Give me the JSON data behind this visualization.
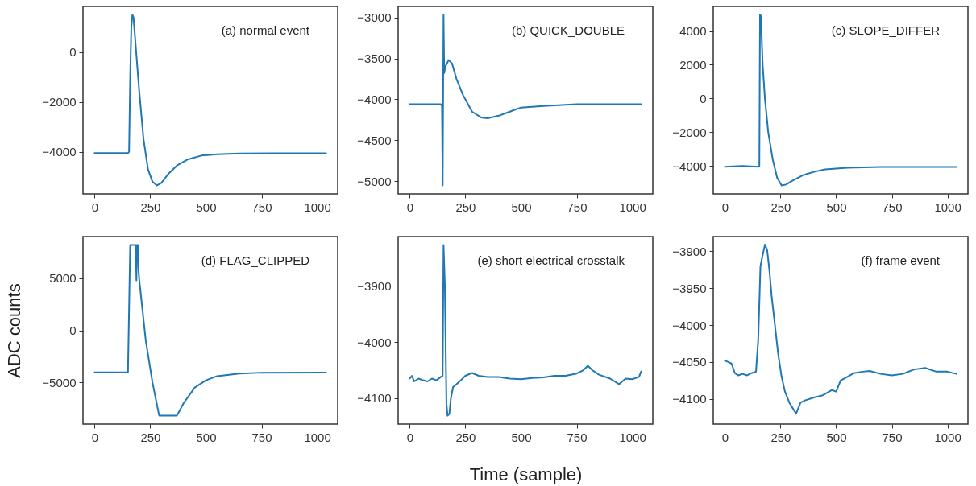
{
  "chart_data": [
    {
      "type": "line",
      "x": [
        0,
        150,
        155,
        160,
        165,
        170,
        175,
        180,
        200,
        220,
        240,
        260,
        280,
        300,
        330,
        370,
        420,
        480,
        550,
        650,
        800,
        1040
      ],
      "series": [
        {
          "color": "#1f77b4",
          "values": [
            -4050,
            -4050,
            -4000,
            -1000,
            1000,
            1500,
            1400,
            800,
            -1500,
            -3500,
            -4700,
            -5200,
            -5350,
            -5250,
            -4900,
            -4550,
            -4300,
            -4150,
            -4100,
            -4070,
            -4060,
            -4060
          ]
        }
      ],
      "xlim": [
        -52,
        1092
      ],
      "ylim": [
        -5690,
        1840
      ],
      "xticks": [
        0,
        250,
        500,
        750,
        1000
      ],
      "yticks": [
        -4000,
        -2000,
        0
      ],
      "annotations": [
        "(a) normal event"
      ]
    },
    {
      "type": "line",
      "x": [
        0,
        140,
        145,
        148,
        152,
        155,
        160,
        175,
        190,
        210,
        240,
        280,
        320,
        350,
        400,
        450,
        500,
        600,
        750,
        1040
      ],
      "series": [
        {
          "color": "#1f77b4",
          "values": [
            -4060,
            -4060,
            -4080,
            -5050,
            -2970,
            -3680,
            -3600,
            -3520,
            -3560,
            -3750,
            -3950,
            -4150,
            -4220,
            -4230,
            -4200,
            -4150,
            -4100,
            -4080,
            -4060,
            -4060
          ]
        }
      ],
      "xlim": [
        -52,
        1092
      ],
      "ylim": [
        -5154,
        -2866
      ],
      "xticks": [
        0,
        250,
        500,
        750,
        1000
      ],
      "yticks": [
        -5000,
        -4500,
        -4000,
        -3500,
        -3000
      ],
      "annotations": [
        "(b) QUICK_DOUBLE"
      ]
    },
    {
      "type": "line",
      "x": [
        0,
        80,
        150,
        155,
        158,
        162,
        170,
        180,
        195,
        215,
        235,
        255,
        275,
        300,
        350,
        400,
        450,
        550,
        700,
        1040
      ],
      "series": [
        {
          "color": "#1f77b4",
          "values": [
            -4050,
            -4000,
            -4050,
            -4000,
            4950,
            4900,
            2000,
            0,
            -2000,
            -3600,
            -4700,
            -5150,
            -5100,
            -4900,
            -4550,
            -4350,
            -4200,
            -4100,
            -4060,
            -4060
          ]
        }
      ],
      "xlim": [
        -52,
        1092
      ],
      "ylim": [
        -5655,
        5455
      ],
      "xticks": [
        0,
        250,
        500,
        750,
        1000
      ],
      "yticks": [
        -4000,
        -2000,
        0,
        2000,
        4000
      ],
      "annotations": [
        "(c) SLOPE_DIFFER"
      ]
    },
    {
      "type": "line",
      "x": [
        0,
        150,
        160,
        185,
        188,
        190,
        195,
        197,
        200,
        230,
        260,
        290,
        370,
        400,
        450,
        500,
        550,
        650,
        750,
        1040
      ],
      "series": [
        {
          "color": "#1f77b4",
          "values": [
            -4050,
            -4050,
            8190,
            8190,
            4800,
            8190,
            8190,
            6000,
            5000,
            -1000,
            -5000,
            -8190,
            -8190,
            -7000,
            -5500,
            -4800,
            -4400,
            -4150,
            -4070,
            -4060
          ]
        }
      ],
      "xlim": [
        -52,
        1092
      ],
      "ylim": [
        -9010,
        9010
      ],
      "xticks": [
        0,
        250,
        500,
        750,
        1000
      ],
      "yticks": [
        -5000,
        0,
        5000
      ],
      "annotations": [
        "(d) FLAG_CLIPPED"
      ],
      "ylabel": "ADC counts"
    },
    {
      "type": "line",
      "x": [
        0,
        10,
        20,
        40,
        60,
        80,
        100,
        120,
        140,
        148,
        152,
        158,
        165,
        170,
        178,
        185,
        195,
        210,
        230,
        250,
        280,
        310,
        350,
        400,
        450,
        500,
        550,
        600,
        650,
        700,
        750,
        780,
        800,
        820,
        850,
        900,
        940,
        970,
        1000,
        1030,
        1040
      ],
      "series": [
        {
          "color": "#1f77b4",
          "values": [
            -4065,
            -4060,
            -4070,
            -4065,
            -4068,
            -4070,
            -4065,
            -4068,
            -4062,
            -4060,
            -3827,
            -3900,
            -4110,
            -4131,
            -4128,
            -4100,
            -4080,
            -4075,
            -4068,
            -4060,
            -4055,
            -4060,
            -4062,
            -4062,
            -4065,
            -4066,
            -4064,
            -4063,
            -4060,
            -4060,
            -4056,
            -4050,
            -4042,
            -4050,
            -4058,
            -4065,
            -4075,
            -4065,
            -4066,
            -4062,
            -4052
          ]
        }
      ],
      "xlim": [
        -52,
        1092
      ],
      "ylim": [
        -4146,
        -3812
      ],
      "xticks": [
        0,
        250,
        500,
        750,
        1000
      ],
      "yticks": [
        -4100,
        -4000,
        -3900
      ],
      "annotations": [
        "(e) short electrical crosstalk"
      ],
      "xlabel": "Time (sample)"
    },
    {
      "type": "line",
      "x": [
        0,
        15,
        30,
        45,
        60,
        80,
        100,
        120,
        140,
        150,
        160,
        170,
        180,
        190,
        200,
        210,
        225,
        240,
        255,
        270,
        290,
        310,
        320,
        340,
        360,
        400,
        440,
        480,
        500,
        520,
        550,
        580,
        620,
        650,
        700,
        750,
        800,
        850,
        900,
        950,
        1000,
        1040
      ],
      "series": [
        {
          "color": "#1f77b4",
          "values": [
            -4048,
            -4050,
            -4052,
            -4065,
            -4068,
            -4066,
            -4068,
            -4065,
            -4063,
            -4020,
            -3920,
            -3905,
            -3891,
            -3898,
            -3925,
            -3960,
            -4000,
            -4040,
            -4070,
            -4090,
            -4105,
            -4115,
            -4120,
            -4105,
            -4102,
            -4098,
            -4095,
            -4088,
            -4090,
            -4075,
            -4070,
            -4065,
            -4063,
            -4062,
            -4066,
            -4068,
            -4066,
            -4060,
            -4058,
            -4063,
            -4063,
            -4066
          ]
        }
      ],
      "xlim": [
        -52,
        1092
      ],
      "ylim": [
        -4134,
        -3880
      ],
      "xticks": [
        0,
        250,
        500,
        750,
        1000
      ],
      "yticks": [
        -4100,
        -4050,
        -4000,
        -3950,
        -3900
      ],
      "annotations": [
        "(f) frame event"
      ]
    }
  ]
}
